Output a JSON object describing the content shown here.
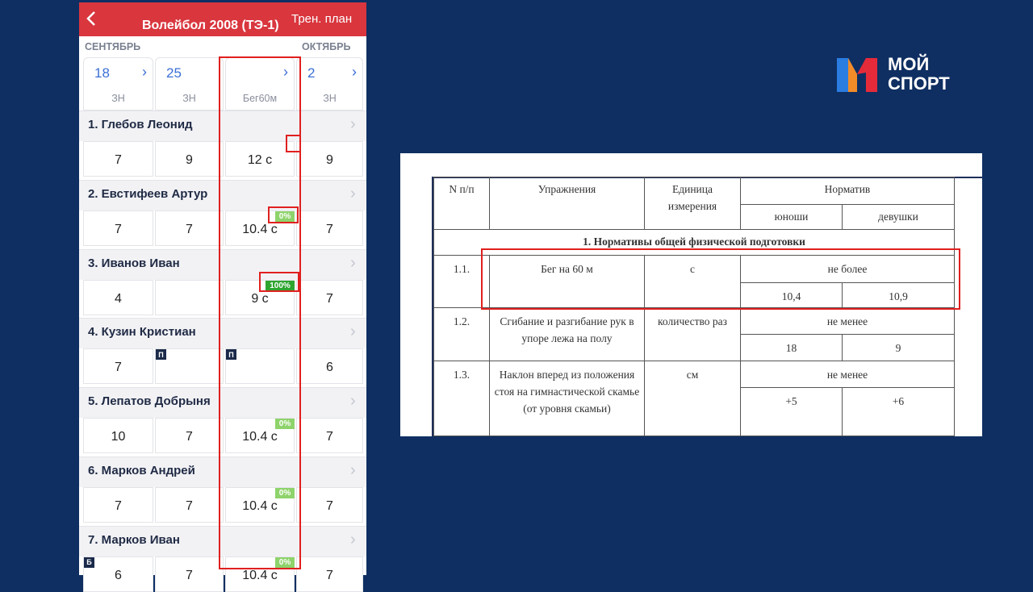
{
  "app": {
    "title": "Волейбол 2008 (ТЭ-1)",
    "action": "Трен. план",
    "months": [
      "СЕНТЯБРЬ",
      "ОКТЯБРЬ"
    ],
    "columns": [
      {
        "date": "18",
        "label": "ЗН"
      },
      {
        "date": "25",
        "label": "ЗН"
      },
      {
        "label": "Бег60м"
      },
      {
        "date": "2",
        "label": "ЗН"
      }
    ],
    "athletes": [
      {
        "name": "1. Глебов Леонид",
        "cells": [
          "7",
          "9",
          "12 с",
          "9"
        ]
      },
      {
        "name": "2. Евстифеев Артур",
        "cells": [
          "7",
          "7",
          "10.4 с",
          "7"
        ],
        "badges": [
          {
            "col": 2,
            "text": "0%"
          }
        ]
      },
      {
        "name": "3. Иванов Иван",
        "cells": [
          "4",
          null,
          "9 с",
          "7"
        ],
        "badges": [
          {
            "col": 2,
            "text": "100%"
          }
        ]
      },
      {
        "name": "4. Кузин Кристиан",
        "cells": [
          "7",
          null,
          null,
          "6"
        ],
        "badges": [
          {
            "col": 1,
            "text": "П"
          },
          {
            "col": 2,
            "text": "П"
          }
        ]
      },
      {
        "name": "5. Лепатов Добрыня",
        "cells": [
          "10",
          "7",
          "10.4 с",
          "7"
        ],
        "badges": [
          {
            "col": 2,
            "text": "0%"
          }
        ]
      },
      {
        "name": "6. Марков Андрей",
        "cells": [
          "7",
          "7",
          "10.4 с",
          "7"
        ],
        "badges": [
          {
            "col": 2,
            "text": "0%"
          }
        ]
      },
      {
        "name": "7. Марков Иван",
        "cells": [
          "6",
          "7",
          "10.4 с",
          "7"
        ],
        "badges": [
          {
            "col": 0,
            "text": "Б"
          },
          {
            "col": 2,
            "text": "0%"
          }
        ]
      }
    ]
  },
  "logo": {
    "line1": "МОЙ",
    "line2": "СПОРТ"
  },
  "document": {
    "header": {
      "number": "N п/п",
      "exercise": "Упражнения",
      "unit": "Единица измерения",
      "norm": "Норматив",
      "boys": "юноши",
      "girls": "девушки"
    },
    "section": "1. Нормативы общей физической подготовки",
    "rows": [
      {
        "number": "1.1.",
        "exercise": "Бег на 60 м",
        "unit": "с",
        "condition": "не более",
        "boys": "10,4",
        "girls": "10,9"
      },
      {
        "number": "1.2.",
        "exercise": "Сгибание и разгибание рук в упоре лежа на полу",
        "unit": "количество раз",
        "condition": "не менее",
        "boys": "18",
        "girls": "9"
      },
      {
        "number": "1.3.",
        "exercise": "Наклон вперед из положения стоя на гимнастической скамье (от уровня скамьи)",
        "unit": "см",
        "condition": "не менее",
        "boys": "+5",
        "girls": "+6"
      }
    ]
  }
}
